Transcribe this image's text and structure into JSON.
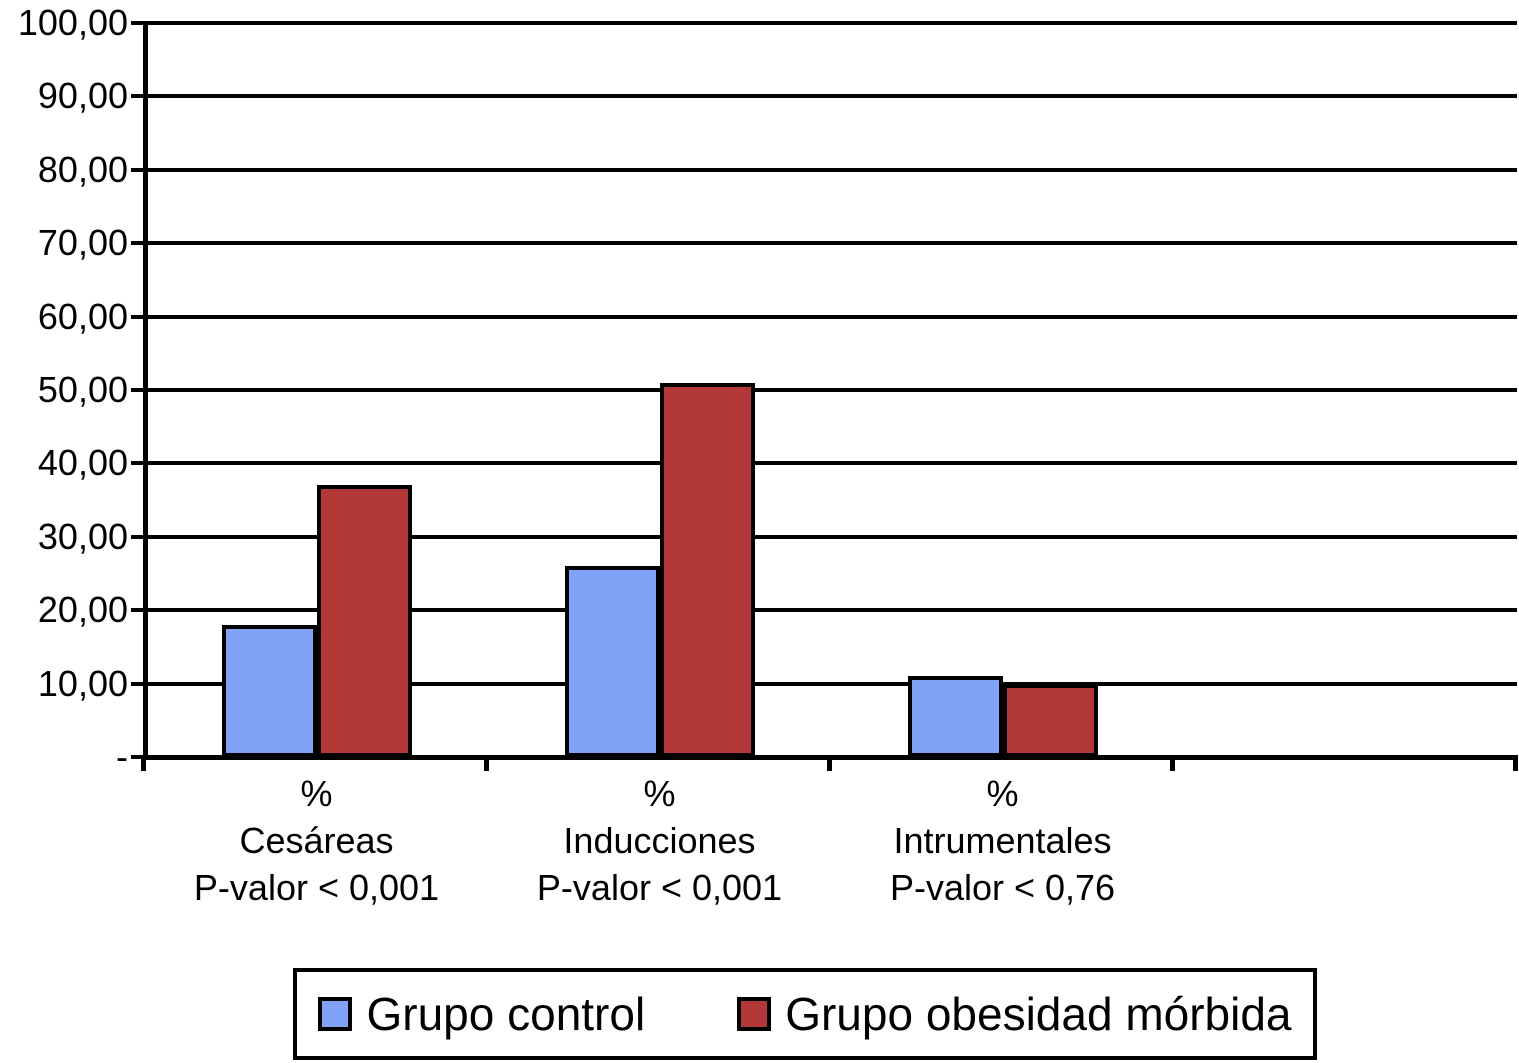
{
  "chart_data": {
    "type": "bar",
    "title": "",
    "xlabel": "",
    "ylabel": "",
    "grid": true,
    "legend_position": "bottom",
    "num_category_slots": 4,
    "y_axis": {
      "min": 0,
      "max": 100,
      "step": 10,
      "tick_labels": [
        "100,00",
        "90,00",
        "80,00",
        "70,00",
        "60,00",
        "50,00",
        "40,00",
        "30,00",
        "20,00",
        "10,00",
        "-"
      ]
    },
    "categories": [
      {
        "unit": "%",
        "name": "Cesáreas",
        "pvalue": "P-valor < 0,001"
      },
      {
        "unit": "%",
        "name": "Inducciones",
        "pvalue": "P-valor < 0,001"
      },
      {
        "unit": "%",
        "name": "Intrumentales",
        "pvalue": "P-valor < 0,76"
      }
    ],
    "series": [
      {
        "name": "Grupo control",
        "color": "#82A2F8",
        "values": [
          18,
          26,
          11
        ]
      },
      {
        "name": "Grupo obesidad mórbida",
        "color": "#B33838",
        "values": [
          37,
          51,
          10
        ]
      }
    ],
    "colors": {
      "axis": "#000000",
      "background": "#FFFFFF",
      "text": "#000000"
    }
  }
}
